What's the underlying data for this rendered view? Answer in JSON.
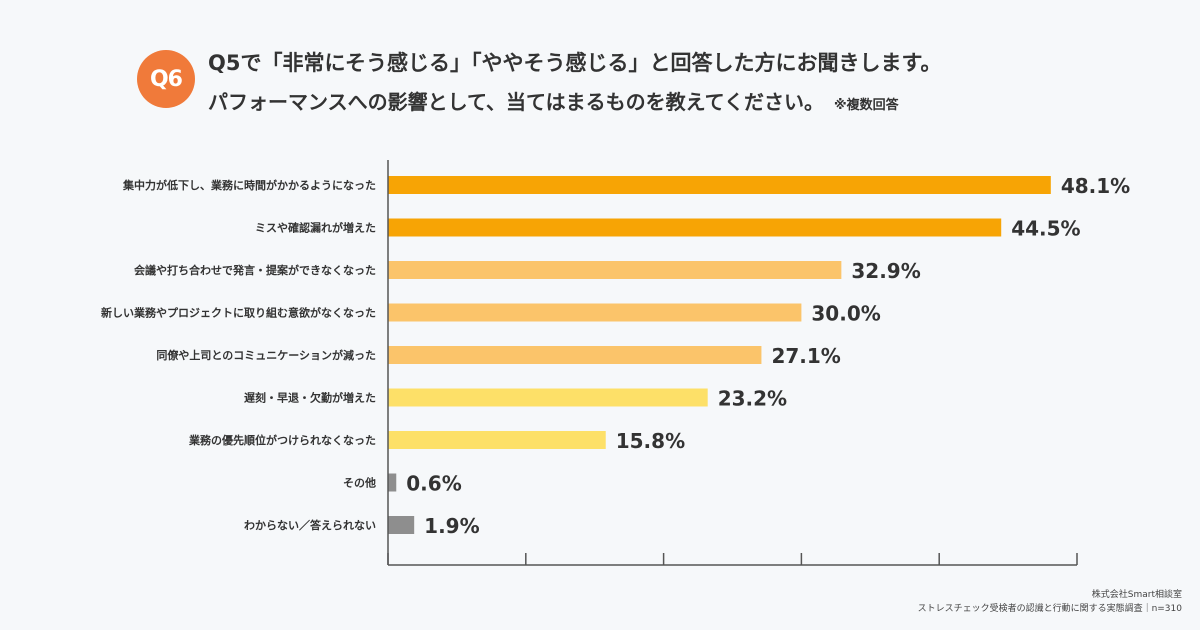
{
  "badge": "Q6",
  "title_line1": "Q5で「非常にそう感じる」「ややそう感じる」と回答した方にお聞きします。",
  "title_line2": "パフォーマンスへの影響として、当てはまるものを教えてください。",
  "title_note": "※複数回答",
  "footer_line1": "株式会社Smart相談室",
  "footer_line2": "ストレスチェック受検者の認識と行動に関する実態調査｜n=310",
  "colors": {
    "dark_orange": "#f7a405",
    "mid_orange": "#fbc46a",
    "yellow": "#fde068",
    "gray": "#8e8e8e"
  },
  "chart_data": {
    "type": "bar",
    "orientation": "horizontal",
    "categories": [
      "集中力が低下し、業務に時間がかかるようになった",
      "ミスや確認漏れが増えた",
      "会議や打ち合わせで発言・提案ができなくなった",
      "新しい業務やプロジェクトに取り組む意欲がなくなった",
      "同僚や上司とのコミュニケーションが減った",
      "遅刻・早退・欠勤が増えた",
      "業務の優先順位がつけられなくなった",
      "その他",
      "わからない／答えられない"
    ],
    "values": [
      48.1,
      44.5,
      32.9,
      30.0,
      27.1,
      23.2,
      15.8,
      0.6,
      1.9
    ],
    "value_labels": [
      "48.1%",
      "44.5%",
      "32.9%",
      "30.0%",
      "27.1%",
      "23.2%",
      "15.8%",
      "0.6%",
      "1.9%"
    ],
    "bar_colors": [
      "#f7a405",
      "#f7a405",
      "#fbc46a",
      "#fbc46a",
      "#fbc46a",
      "#fde068",
      "#fde068",
      "#8e8e8e",
      "#8e8e8e"
    ],
    "xlim": [
      0,
      50
    ],
    "xticks": [
      0,
      10,
      20,
      30,
      40,
      50
    ],
    "title": "",
    "xlabel": "",
    "ylabel": ""
  }
}
